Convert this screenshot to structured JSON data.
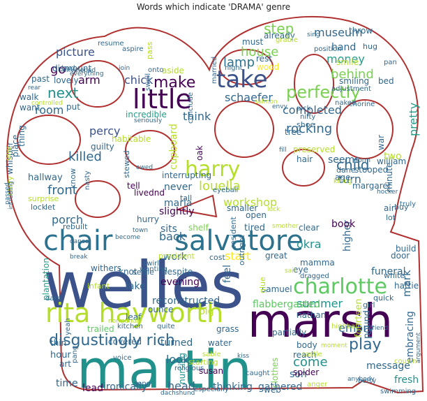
{
  "title": "Words which indicate 'DRAMA' genre",
  "outline_color": "#b03030",
  "palette": [
    "#440154",
    "#3b528b",
    "#21918c",
    "#5ec962",
    "#fde725",
    "#2c728e",
    "#7ad151",
    "#31688e",
    "#482878",
    "#35b779",
    "#1f9e89",
    "#b5de2b"
  ],
  "words": [
    {
      "text": "welles",
      "color": "#3b528b"
    },
    {
      "text": "marsh",
      "color": "#440154"
    },
    {
      "text": "martin",
      "color": "#21918c"
    },
    {
      "text": "rita hayworth",
      "color": "#b5de2b"
    },
    {
      "text": "salvatore",
      "color": "#2c728e"
    },
    {
      "text": "charlotte",
      "color": "#5ec962"
    },
    {
      "text": "chair",
      "color": "#2c728e"
    },
    {
      "text": "harry",
      "color": "#b5de2b"
    },
    {
      "text": "take",
      "color": "#3b528b"
    },
    {
      "text": "little",
      "color": "#440154"
    },
    {
      "text": "disgustingly rich",
      "color": "#31688e"
    },
    {
      "text": "perfectly",
      "color": "#7ad151"
    },
    {
      "text": "play",
      "color": "#31688e"
    },
    {
      "text": "louella",
      "color": "#b5de2b"
    },
    {
      "text": "step",
      "color": "#7ad151"
    },
    {
      "text": "museum",
      "color": "#31688e"
    },
    {
      "text": "house",
      "color": "#7ad151"
    },
    {
      "text": "lamp",
      "color": "#2c728e"
    },
    {
      "text": "money",
      "color": "#1f9e89"
    },
    {
      "text": "rocking",
      "color": "#31688e"
    },
    {
      "text": "child",
      "color": "#31688e"
    },
    {
      "text": "behind",
      "color": "#7ad151"
    },
    {
      "text": "completed",
      "color": "#31688e"
    },
    {
      "text": "schaefer",
      "color": "#31688e"
    },
    {
      "text": "make",
      "color": "#440154"
    },
    {
      "text": "next",
      "color": "#21918c"
    },
    {
      "text": "picture",
      "color": "#3b528b"
    },
    {
      "text": "chick",
      "color": "#3b528b"
    },
    {
      "text": "room",
      "color": "#31688e"
    },
    {
      "text": "percy",
      "color": "#3b528b"
    },
    {
      "text": "killed",
      "color": "#31688e"
    },
    {
      "text": "front",
      "color": "#31688e"
    },
    {
      "text": "porch",
      "color": "#31688e"
    },
    {
      "text": "maria",
      "color": "#31688e"
    },
    {
      "text": "workshop",
      "color": "#b5de2b"
    },
    {
      "text": "start",
      "color": "#fde725"
    },
    {
      "text": "emory",
      "color": "#31688e"
    },
    {
      "text": "okra",
      "color": "#21918c"
    },
    {
      "text": "summer",
      "color": "#21918c"
    },
    {
      "text": "mark",
      "color": "#31688e"
    },
    {
      "text": "back",
      "color": "#31688e"
    },
    {
      "text": "sits",
      "color": "#31688e"
    },
    {
      "text": "work",
      "color": "#31688e"
    },
    {
      "text": "feel",
      "color": "#31688e"
    },
    {
      "text": "come",
      "color": "#21918c"
    },
    {
      "text": "look",
      "color": "#31688e"
    },
    {
      "text": "head",
      "color": "#31688e"
    },
    {
      "text": "big",
      "color": "#b5de2b"
    },
    {
      "text": "pretty",
      "color": "#1f9e89"
    },
    {
      "text": "hand",
      "color": "#31688e"
    },
    {
      "text": "go",
      "color": "#440154"
    },
    {
      "text": "arm",
      "color": "#440154"
    },
    {
      "text": "think",
      "color": "#31688e"
    },
    {
      "text": "never",
      "color": "#31688e"
    },
    {
      "text": "slightly",
      "color": "#440154"
    },
    {
      "text": "reconstructed",
      "color": "#31688e"
    },
    {
      "text": "flabbergasted",
      "color": "#5ec962"
    },
    {
      "text": "gathered",
      "color": "#31688e"
    },
    {
      "text": "ironically",
      "color": "#31688e"
    },
    {
      "text": "thinking",
      "color": "#31688e"
    },
    {
      "text": "turn",
      "color": "#31688e"
    },
    {
      "text": "seems",
      "color": "#31688e"
    },
    {
      "text": "higher",
      "color": "#31688e"
    },
    {
      "text": "book",
      "color": "#440154"
    },
    {
      "text": "son",
      "color": "#31688e"
    },
    {
      "text": "fresh",
      "color": "#21918c"
    },
    {
      "text": "message",
      "color": "#31688e"
    },
    {
      "text": "funeral",
      "color": "#31688e"
    },
    {
      "text": "embracing",
      "color": "#31688e"
    },
    {
      "text": "time",
      "color": "#31688e"
    },
    {
      "text": "lead",
      "color": "#440154"
    },
    {
      "text": "nursing",
      "color": "#21918c"
    },
    {
      "text": "susan",
      "color": "#440154"
    },
    {
      "text": "turned",
      "color": "#31688e"
    },
    {
      "text": "covered",
      "color": "#31688e"
    },
    {
      "text": "thin",
      "color": "#31688e"
    },
    {
      "text": "hour",
      "color": "#31688e"
    },
    {
      "text": "art",
      "color": "#31688e"
    },
    {
      "text": "trailed",
      "color": "#5ec962"
    },
    {
      "text": "leaf",
      "color": "#31688e"
    },
    {
      "text": "ounce",
      "color": "#31688e"
    },
    {
      "text": "evening",
      "color": "#440154"
    },
    {
      "text": "lake",
      "color": "#31688e"
    },
    {
      "text": "withers",
      "color": "#31688e"
    },
    {
      "text": "knot",
      "color": "#31688e"
    },
    {
      "text": "despite",
      "color": "#31688e"
    },
    {
      "text": "shelf",
      "color": "#7ad151"
    },
    {
      "text": "tired",
      "color": "#31688e"
    },
    {
      "text": "clear",
      "color": "#31688e"
    },
    {
      "text": "open",
      "color": "#31688e"
    },
    {
      "text": "smaller",
      "color": "#31688e"
    },
    {
      "text": "hurry",
      "color": "#31688e"
    },
    {
      "text": "tell",
      "color": "#440154"
    },
    {
      "text": "livednd",
      "color": "#440154"
    },
    {
      "text": "interrupting",
      "color": "#31688e"
    },
    {
      "text": "guilty",
      "color": "#31688e"
    },
    {
      "text": "habitable",
      "color": "#b5de2b"
    },
    {
      "text": "incredible",
      "color": "#1f9e89"
    },
    {
      "text": "put",
      "color": "#31688e"
    },
    {
      "text": "dismount",
      "color": "#31688e"
    },
    {
      "text": "lovely",
      "color": "#31688e"
    },
    {
      "text": "past",
      "color": "#31688e"
    },
    {
      "text": "walk",
      "color": "#31688e"
    },
    {
      "text": "want",
      "color": "#31688e"
    },
    {
      "text": "hallway",
      "color": "#31688e"
    },
    {
      "text": "surprise",
      "color": "#b5de2b"
    },
    {
      "text": "lock",
      "color": "#31688e"
    },
    {
      "text": "let",
      "color": "#31688e"
    },
    {
      "text": "rebuilt",
      "color": "#31688e"
    },
    {
      "text": "plantation",
      "color": "#1f9e89"
    },
    {
      "text": "water",
      "color": "#31688e"
    },
    {
      "text": "grass",
      "color": "#31688e"
    },
    {
      "text": "partially",
      "color": "#31688e"
    },
    {
      "text": "body",
      "color": "#31688e"
    },
    {
      "text": "clothes",
      "color": "#7ad151"
    },
    {
      "text": "reach",
      "color": "#31688e"
    },
    {
      "text": "spider",
      "color": "#440154"
    },
    {
      "text": "web",
      "color": "#31688e"
    },
    {
      "text": "fourteen",
      "color": "#b5de2b"
    },
    {
      "text": "pound",
      "color": "#31688e"
    },
    {
      "text": "nathan",
      "color": "#31688e"
    },
    {
      "text": "samuel",
      "color": "#31688e"
    },
    {
      "text": "eye",
      "color": "#31688e"
    },
    {
      "text": "mamma",
      "color": "#31688e"
    },
    {
      "text": "door",
      "color": "#31688e"
    },
    {
      "text": "build",
      "color": "#31688e"
    },
    {
      "text": "hattie",
      "color": "#31688e"
    },
    {
      "text": "white",
      "color": "#31688e"
    },
    {
      "text": "quick",
      "color": "#31688e"
    },
    {
      "text": "girl",
      "color": "#31688e"
    },
    {
      "text": "wood",
      "color": "#fde725"
    },
    {
      "text": "rest",
      "color": "#31688e"
    },
    {
      "text": "must",
      "color": "#31688e"
    },
    {
      "text": "already",
      "color": "#31688e"
    },
    {
      "text": "throw",
      "color": "#31688e"
    },
    {
      "text": "hug",
      "color": "#31688e"
    },
    {
      "text": "smile",
      "color": "#b5de2b"
    },
    {
      "text": "smiling",
      "color": "#31688e"
    },
    {
      "text": "bed",
      "color": "#31688e"
    },
    {
      "text": "tree",
      "color": "#31688e"
    },
    {
      "text": "shoe",
      "color": "#31688e"
    },
    {
      "text": "preserved",
      "color": "#b5de2b"
    },
    {
      "text": "hair",
      "color": "#31688e"
    },
    {
      "text": "william",
      "color": "#31688e"
    },
    {
      "text": "stooped",
      "color": "#31688e"
    },
    {
      "text": "margaret",
      "color": "#31688e"
    },
    {
      "text": "age",
      "color": "#31688e"
    },
    {
      "text": "two",
      "color": "#b5de2b"
    },
    {
      "text": "dane",
      "color": "#31688e"
    },
    {
      "text": "cupboard",
      "color": "#b5de2b"
    },
    {
      "text": "oak",
      "color": "#440154"
    },
    {
      "text": "aside",
      "color": "#b5de2b"
    },
    {
      "text": "onto",
      "color": "#31688e"
    },
    {
      "text": "whisper",
      "color": "#31688e"
    },
    {
      "text": "place",
      "color": "#31688e"
    },
    {
      "text": "thing",
      "color": "#31688e"
    },
    {
      "text": "carry",
      "color": "#b5de2b"
    },
    {
      "text": "one",
      "color": "#b5de2b"
    },
    {
      "text": "know",
      "color": "#31688e"
    },
    {
      "text": "tall",
      "color": "#31688e"
    },
    {
      "text": "eyeball",
      "color": "#31688e"
    },
    {
      "text": "position",
      "color": "#31688e"
    },
    {
      "text": "resume",
      "color": "#31688e"
    },
    {
      "text": "aspire",
      "color": "#31688e"
    },
    {
      "text": "minute",
      "color": "#31688e"
    },
    {
      "text": "war",
      "color": "#31688e"
    },
    {
      "text": "air",
      "color": "#31688e"
    },
    {
      "text": "buy",
      "color": "#31688e"
    },
    {
      "text": "truly",
      "color": "#31688e"
    },
    {
      "text": "lot",
      "color": "#31688e"
    },
    {
      "text": "glue",
      "color": "#b5de2b"
    },
    {
      "text": "resident",
      "color": "#31688e"
    },
    {
      "text": "cost",
      "color": "#31688e"
    },
    {
      "text": "great",
      "color": "#31688e"
    },
    {
      "text": "swirl",
      "color": "#31688e"
    },
    {
      "text": "president",
      "color": "#b5de2b"
    },
    {
      "text": "settle",
      "color": "#31688e"
    },
    {
      "text": "infant",
      "color": "#b5de2b"
    },
    {
      "text": "darn",
      "color": "#31688e"
    },
    {
      "text": "kitchen",
      "color": "#31688e"
    },
    {
      "text": "voice",
      "color": "#31688e"
    },
    {
      "text": "starting",
      "color": "#b5de2b"
    },
    {
      "text": "sable",
      "color": "#b5de2b"
    },
    {
      "text": "kiss",
      "color": "#31688e"
    },
    {
      "text": "caught",
      "color": "#31688e"
    },
    {
      "text": "song",
      "color": "#31688e"
    },
    {
      "text": "dachshund",
      "color": "#31688e"
    },
    {
      "text": "especially",
      "color": "#31688e"
    },
    {
      "text": "anger",
      "color": "#b5de2b"
    },
    {
      "text": "swimming",
      "color": "#31688e"
    },
    {
      "text": "betty",
      "color": "#31688e"
    },
    {
      "text": "castle",
      "color": "#b5de2b"
    },
    {
      "text": "highball",
      "color": "#b5de2b"
    },
    {
      "text": "friend",
      "color": "#31688e"
    },
    {
      "text": "cousin",
      "color": "#b5de2b"
    },
    {
      "text": "argument",
      "color": "#31688e"
    },
    {
      "text": "nifty",
      "color": "#31688e"
    },
    {
      "text": "pick",
      "color": "#31688e"
    },
    {
      "text": "fill",
      "color": "#31688e"
    },
    {
      "text": "storm",
      "color": "#31688e"
    },
    {
      "text": "grable",
      "color": "#b5de2b"
    },
    {
      "text": "pan",
      "color": "#31688e"
    },
    {
      "text": "adjustment",
      "color": "#31688e"
    },
    {
      "text": "naked",
      "color": "#31688e"
    },
    {
      "text": "chorine",
      "color": "#31688e"
    },
    {
      "text": "married",
      "color": "#31688e"
    },
    {
      "text": "night",
      "color": "#31688e"
    },
    {
      "text": "salmon",
      "color": "#b5de2b"
    },
    {
      "text": "envy",
      "color": "#31688e"
    },
    {
      "text": "pass",
      "color": "#b5de2b"
    },
    {
      "text": "seriously",
      "color": "#31688e"
    },
    {
      "text": "conclude",
      "color": "#31688e"
    },
    {
      "text": "owed",
      "color": "#31688e"
    },
    {
      "text": "nasty",
      "color": "#31688e"
    },
    {
      "text": "stewed",
      "color": "#31688e"
    },
    {
      "text": "luck",
      "color": "#b5de2b"
    },
    {
      "text": "smother",
      "color": "#b5de2b"
    },
    {
      "text": "dragged",
      "color": "#31688e"
    },
    {
      "text": "sail",
      "color": "#b5de2b"
    },
    {
      "text": "outright",
      "color": "#31688e"
    },
    {
      "text": "wanting",
      "color": "#31688e"
    },
    {
      "text": "break",
      "color": "#31688e"
    },
    {
      "text": "dance",
      "color": "#31688e"
    },
    {
      "text": "become",
      "color": "#31688e"
    },
    {
      "text": "town",
      "color": "#31688e"
    },
    {
      "text": "quite",
      "color": "#31688e"
    },
    {
      "text": "normandie",
      "color": "#b5de2b"
    },
    {
      "text": "yeah",
      "color": "#31688e"
    },
    {
      "text": "pang",
      "color": "#31688e"
    },
    {
      "text": "religious",
      "color": "#31688e"
    },
    {
      "text": "moment",
      "color": "#b5de2b"
    },
    {
      "text": "anybody",
      "color": "#31688e"
    },
    {
      "text": "sing",
      "color": "#31688e"
    },
    {
      "text": "enveloped",
      "color": "#31688e"
    },
    {
      "text": "everything",
      "color": "#31688e"
    },
    {
      "text": "loud",
      "color": "#31688e"
    },
    {
      "text": "rear",
      "color": "#31688e"
    },
    {
      "text": "controlled",
      "color": "#b5de2b"
    },
    {
      "text": "join",
      "color": "#31688e"
    },
    {
      "text": "swell",
      "color": "#31688e"
    },
    {
      "text": "intruding",
      "color": "#31688e"
    },
    {
      "text": "passed",
      "color": "#31688e"
    },
    {
      "text": "hocker",
      "color": "#31688e"
    },
    {
      "text": "killing",
      "color": "#b5de2b"
    },
    {
      "text": "number",
      "color": "#31688e"
    },
    {
      "text": "guest",
      "color": "#31688e"
    }
  ]
}
